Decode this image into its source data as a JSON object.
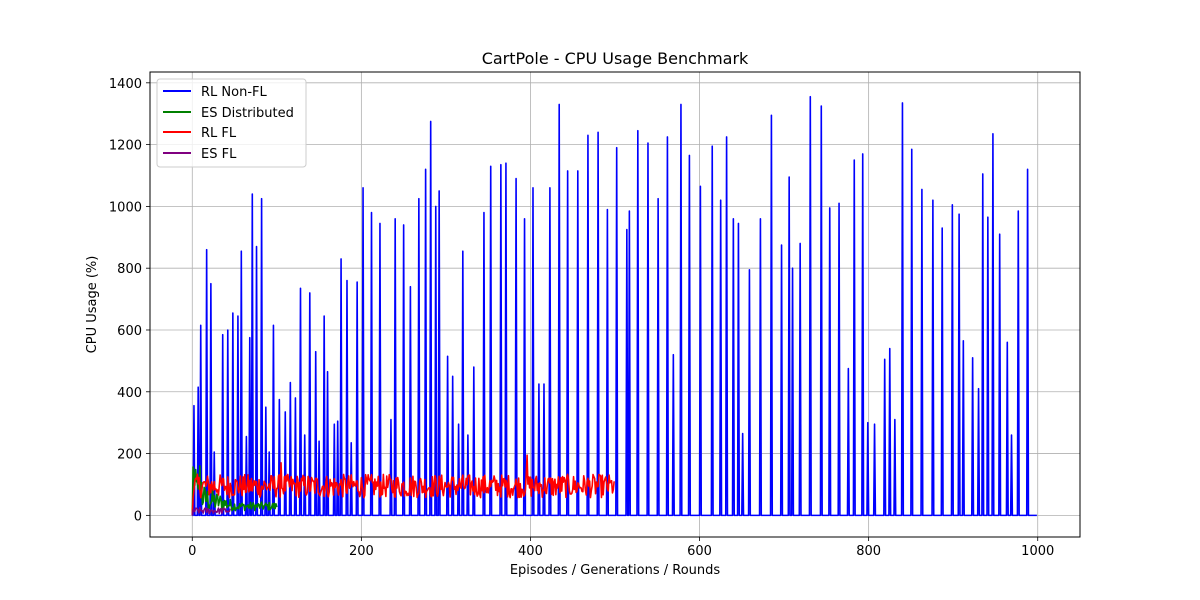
{
  "chart_data": {
    "type": "line",
    "title": "CartPole - CPU Usage Benchmark",
    "xlabel": "Episodes / Generations / Rounds",
    "ylabel": "CPU Usage (%)",
    "xlim": [
      -50,
      1050
    ],
    "ylim": [
      -70,
      1435
    ],
    "xticks": [
      0,
      200,
      400,
      600,
      800,
      1000
    ],
    "yticks": [
      0,
      200,
      400,
      600,
      800,
      1000,
      1200,
      1400
    ],
    "grid": true,
    "legend_position": "top-left",
    "series": [
      {
        "name": "RL Non-FL",
        "color": "#0000ff",
        "x_start": 0,
        "x_end": 999,
        "peaks": [
          [
            2,
            355
          ],
          [
            7,
            415
          ],
          [
            10,
            615
          ],
          [
            17,
            860
          ],
          [
            22,
            750
          ],
          [
            26,
            205
          ],
          [
            36,
            585
          ],
          [
            42,
            600
          ],
          [
            48,
            655
          ],
          [
            54,
            645
          ],
          [
            58,
            855
          ],
          [
            64,
            255
          ],
          [
            68,
            575
          ],
          [
            71,
            1040
          ],
          [
            76,
            870
          ],
          [
            82,
            1025
          ],
          [
            87,
            350
          ],
          [
            91,
            205
          ],
          [
            96,
            615
          ],
          [
            103,
            375
          ],
          [
            110,
            335
          ],
          [
            116,
            430
          ],
          [
            122,
            380
          ],
          [
            128,
            735
          ],
          [
            133,
            260
          ],
          [
            139,
            720
          ],
          [
            146,
            530
          ],
          [
            150,
            240
          ],
          [
            156,
            645
          ],
          [
            160,
            465
          ],
          [
            168,
            295
          ],
          [
            172,
            305
          ],
          [
            176,
            830
          ],
          [
            183,
            760
          ],
          [
            188,
            235
          ],
          [
            195,
            755
          ],
          [
            202,
            1060
          ],
          [
            212,
            980
          ],
          [
            222,
            945
          ],
          [
            235,
            310
          ],
          [
            240,
            960
          ],
          [
            250,
            940
          ],
          [
            258,
            740
          ],
          [
            268,
            1025
          ],
          [
            276,
            1120
          ],
          [
            282,
            1275
          ],
          [
            288,
            1000
          ],
          [
            292,
            1050
          ],
          [
            302,
            515
          ],
          [
            308,
            450
          ],
          [
            315,
            295
          ],
          [
            320,
            855
          ],
          [
            326,
            260
          ],
          [
            333,
            480
          ],
          [
            345,
            980
          ],
          [
            353,
            1130
          ],
          [
            365,
            1135
          ],
          [
            371,
            1140
          ],
          [
            383,
            1090
          ],
          [
            393,
            960
          ],
          [
            403,
            1060
          ],
          [
            410,
            425
          ],
          [
            416,
            425
          ],
          [
            423,
            1060
          ],
          [
            434,
            1330
          ],
          [
            444,
            1115
          ],
          [
            456,
            1115
          ],
          [
            468,
            1230
          ],
          [
            480,
            1240
          ],
          [
            491,
            990
          ],
          [
            502,
            1190
          ],
          [
            514,
            925
          ],
          [
            517,
            985
          ],
          [
            527,
            1245
          ],
          [
            539,
            1205
          ],
          [
            551,
            1025
          ],
          [
            562,
            1225
          ],
          [
            569,
            520
          ],
          [
            578,
            1330
          ],
          [
            588,
            1165
          ],
          [
            601,
            1065
          ],
          [
            615,
            1195
          ],
          [
            625,
            1020
          ],
          [
            632,
            1225
          ],
          [
            640,
            960
          ],
          [
            646,
            945
          ],
          [
            651,
            265
          ],
          [
            659,
            795
          ],
          [
            672,
            960
          ],
          [
            685,
            1295
          ],
          [
            697,
            875
          ],
          [
            706,
            1095
          ],
          [
            710,
            800
          ],
          [
            719,
            880
          ],
          [
            731,
            1355
          ],
          [
            744,
            1325
          ],
          [
            754,
            995
          ],
          [
            765,
            1010
          ],
          [
            776,
            475
          ],
          [
            783,
            1150
          ],
          [
            793,
            1170
          ],
          [
            799,
            300
          ],
          [
            807,
            295
          ],
          [
            819,
            505
          ],
          [
            825,
            540
          ],
          [
            831,
            310
          ],
          [
            840,
            1335
          ],
          [
            851,
            1185
          ],
          [
            863,
            1055
          ],
          [
            876,
            1020
          ],
          [
            887,
            930
          ],
          [
            899,
            1005
          ],
          [
            907,
            975
          ],
          [
            912,
            565
          ],
          [
            923,
            510
          ],
          [
            930,
            410
          ],
          [
            935,
            1105
          ],
          [
            941,
            965
          ],
          [
            947,
            1235
          ],
          [
            955,
            910
          ],
          [
            964,
            560
          ],
          [
            969,
            260
          ],
          [
            977,
            985
          ],
          [
            988,
            1120
          ]
        ]
      },
      {
        "name": "ES Distributed",
        "color": "#008000",
        "x_start": 0,
        "x_end": 100,
        "noise_base": 45,
        "noise_amp": 55
      },
      {
        "name": "RL FL",
        "color": "#ff0000",
        "x_start": 0,
        "x_end": 499,
        "noise_base": 95,
        "noise_amp": 38,
        "spikes": [
          [
            105,
            170
          ],
          [
            396,
            195
          ]
        ]
      },
      {
        "name": "ES FL",
        "color": "#800080",
        "x_start": 0,
        "x_end": 45,
        "noise_base": 15,
        "noise_amp": 10
      }
    ]
  }
}
